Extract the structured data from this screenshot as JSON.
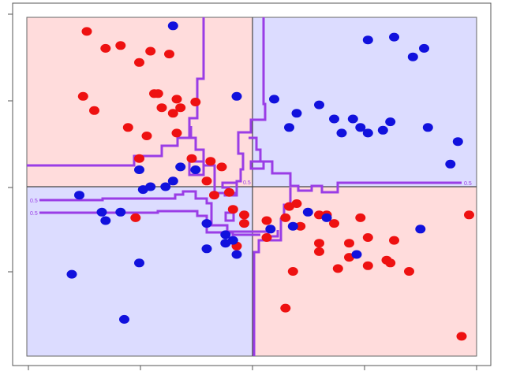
{
  "chart_data": {
    "type": "scatter",
    "title": "",
    "xlabel": "",
    "ylabel": "",
    "xlim": [
      -3,
      3
    ],
    "ylim": [
      -3,
      3
    ],
    "grid": false,
    "legend": "none",
    "quadrants": [
      {
        "name": "top-left",
        "class": "red"
      },
      {
        "name": "top-right",
        "class": "blue"
      },
      {
        "name": "bottom-left",
        "class": "blue"
      },
      {
        "name": "bottom-right",
        "class": "red"
      }
    ],
    "colors": {
      "red_points": "#ee1111",
      "blue_points": "#1111dd",
      "red_region": "#ffdcdc",
      "blue_region": "#dcdcff",
      "boundary": "#9a3de6",
      "axis_lines": "#444444"
    },
    "contour_labels": [
      "0.5",
      "0.5",
      "0.5",
      "0.5"
    ],
    "series": [
      {
        "class": "red",
        "x": [
          -2.2,
          -1.95,
          -1.75,
          -1.5,
          -1.35,
          -1.1,
          -1.3,
          -1.0,
          -1.25,
          -0.95,
          -1.2,
          -1.05,
          -0.75,
          -2.25,
          -2.1,
          -1.65,
          -1.5,
          -1.4,
          -1.0,
          -0.8,
          -0.55,
          -0.4,
          -0.6,
          -0.3,
          -0.25,
          -0.1,
          0.5,
          0.9,
          1.1,
          1.45,
          1.55,
          0.65,
          0.9,
          1.3,
          1.15,
          0.55,
          0.45,
          1.9,
          2.9,
          2.1,
          2.8,
          1.55,
          1.3,
          0.9,
          0.2,
          -0.1,
          -0.2,
          1.8,
          1.85,
          0.2,
          0.45,
          0.6,
          1.0,
          -1.55,
          -0.5
        ],
        "y": [
          2.75,
          2.45,
          2.5,
          2.2,
          2.4,
          2.35,
          1.65,
          1.55,
          1.65,
          1.4,
          1.4,
          1.3,
          1.5,
          1.6,
          1.35,
          1.05,
          0.5,
          0.9,
          0.95,
          0.5,
          0.45,
          0.35,
          0.1,
          -0.1,
          -0.4,
          -0.5,
          -0.35,
          -0.5,
          -0.65,
          -0.55,
          -0.9,
          -0.7,
          -1.0,
          -1.25,
          -1.45,
          -1.5,
          -2.15,
          -0.95,
          -0.5,
          -1.5,
          -2.65,
          -1.4,
          -1.0,
          -1.15,
          -0.9,
          -0.65,
          -1.05,
          -1.3,
          -1.35,
          -0.6,
          -0.55,
          -0.3,
          -0.5,
          -0.55,
          -0.15
        ],
        "color": "#ee1111"
      },
      {
        "class": "blue",
        "x": [
          -1.05,
          1.55,
          1.9,
          2.3,
          2.15,
          -0.2,
          0.3,
          0.6,
          0.9,
          1.1,
          0.5,
          1.35,
          1.2,
          1.45,
          1.55,
          1.75,
          1.85,
          2.35,
          2.65,
          2.75,
          -2.3,
          -1.75,
          -1.5,
          -1.15,
          -1.45,
          -1.05,
          -1.35,
          -0.95,
          -0.75,
          -0.6,
          -0.35,
          -0.25,
          -0.35,
          -0.2,
          -0.6,
          -1.5,
          -1.95,
          -2.4,
          -1.7,
          0.25,
          0.55,
          0.75,
          1.0,
          1.4,
          2.25,
          -2.0
        ],
        "y": [
          2.85,
          2.6,
          2.65,
          2.45,
          2.3,
          1.6,
          1.55,
          1.3,
          1.45,
          1.2,
          1.05,
          1.2,
          0.95,
          1.05,
          0.95,
          1.0,
          1.15,
          1.05,
          0.4,
          0.8,
          -0.15,
          -0.45,
          0.3,
          0.0,
          -0.05,
          0.1,
          0.0,
          0.35,
          0.3,
          -0.65,
          -0.85,
          -0.95,
          -1.0,
          -1.2,
          -1.1,
          -1.35,
          -0.6,
          -1.55,
          -2.35,
          -0.75,
          -0.7,
          -0.45,
          -0.55,
          -1.2,
          -0.75,
          -0.45
        ],
        "color": "#1111dd"
      }
    ]
  }
}
